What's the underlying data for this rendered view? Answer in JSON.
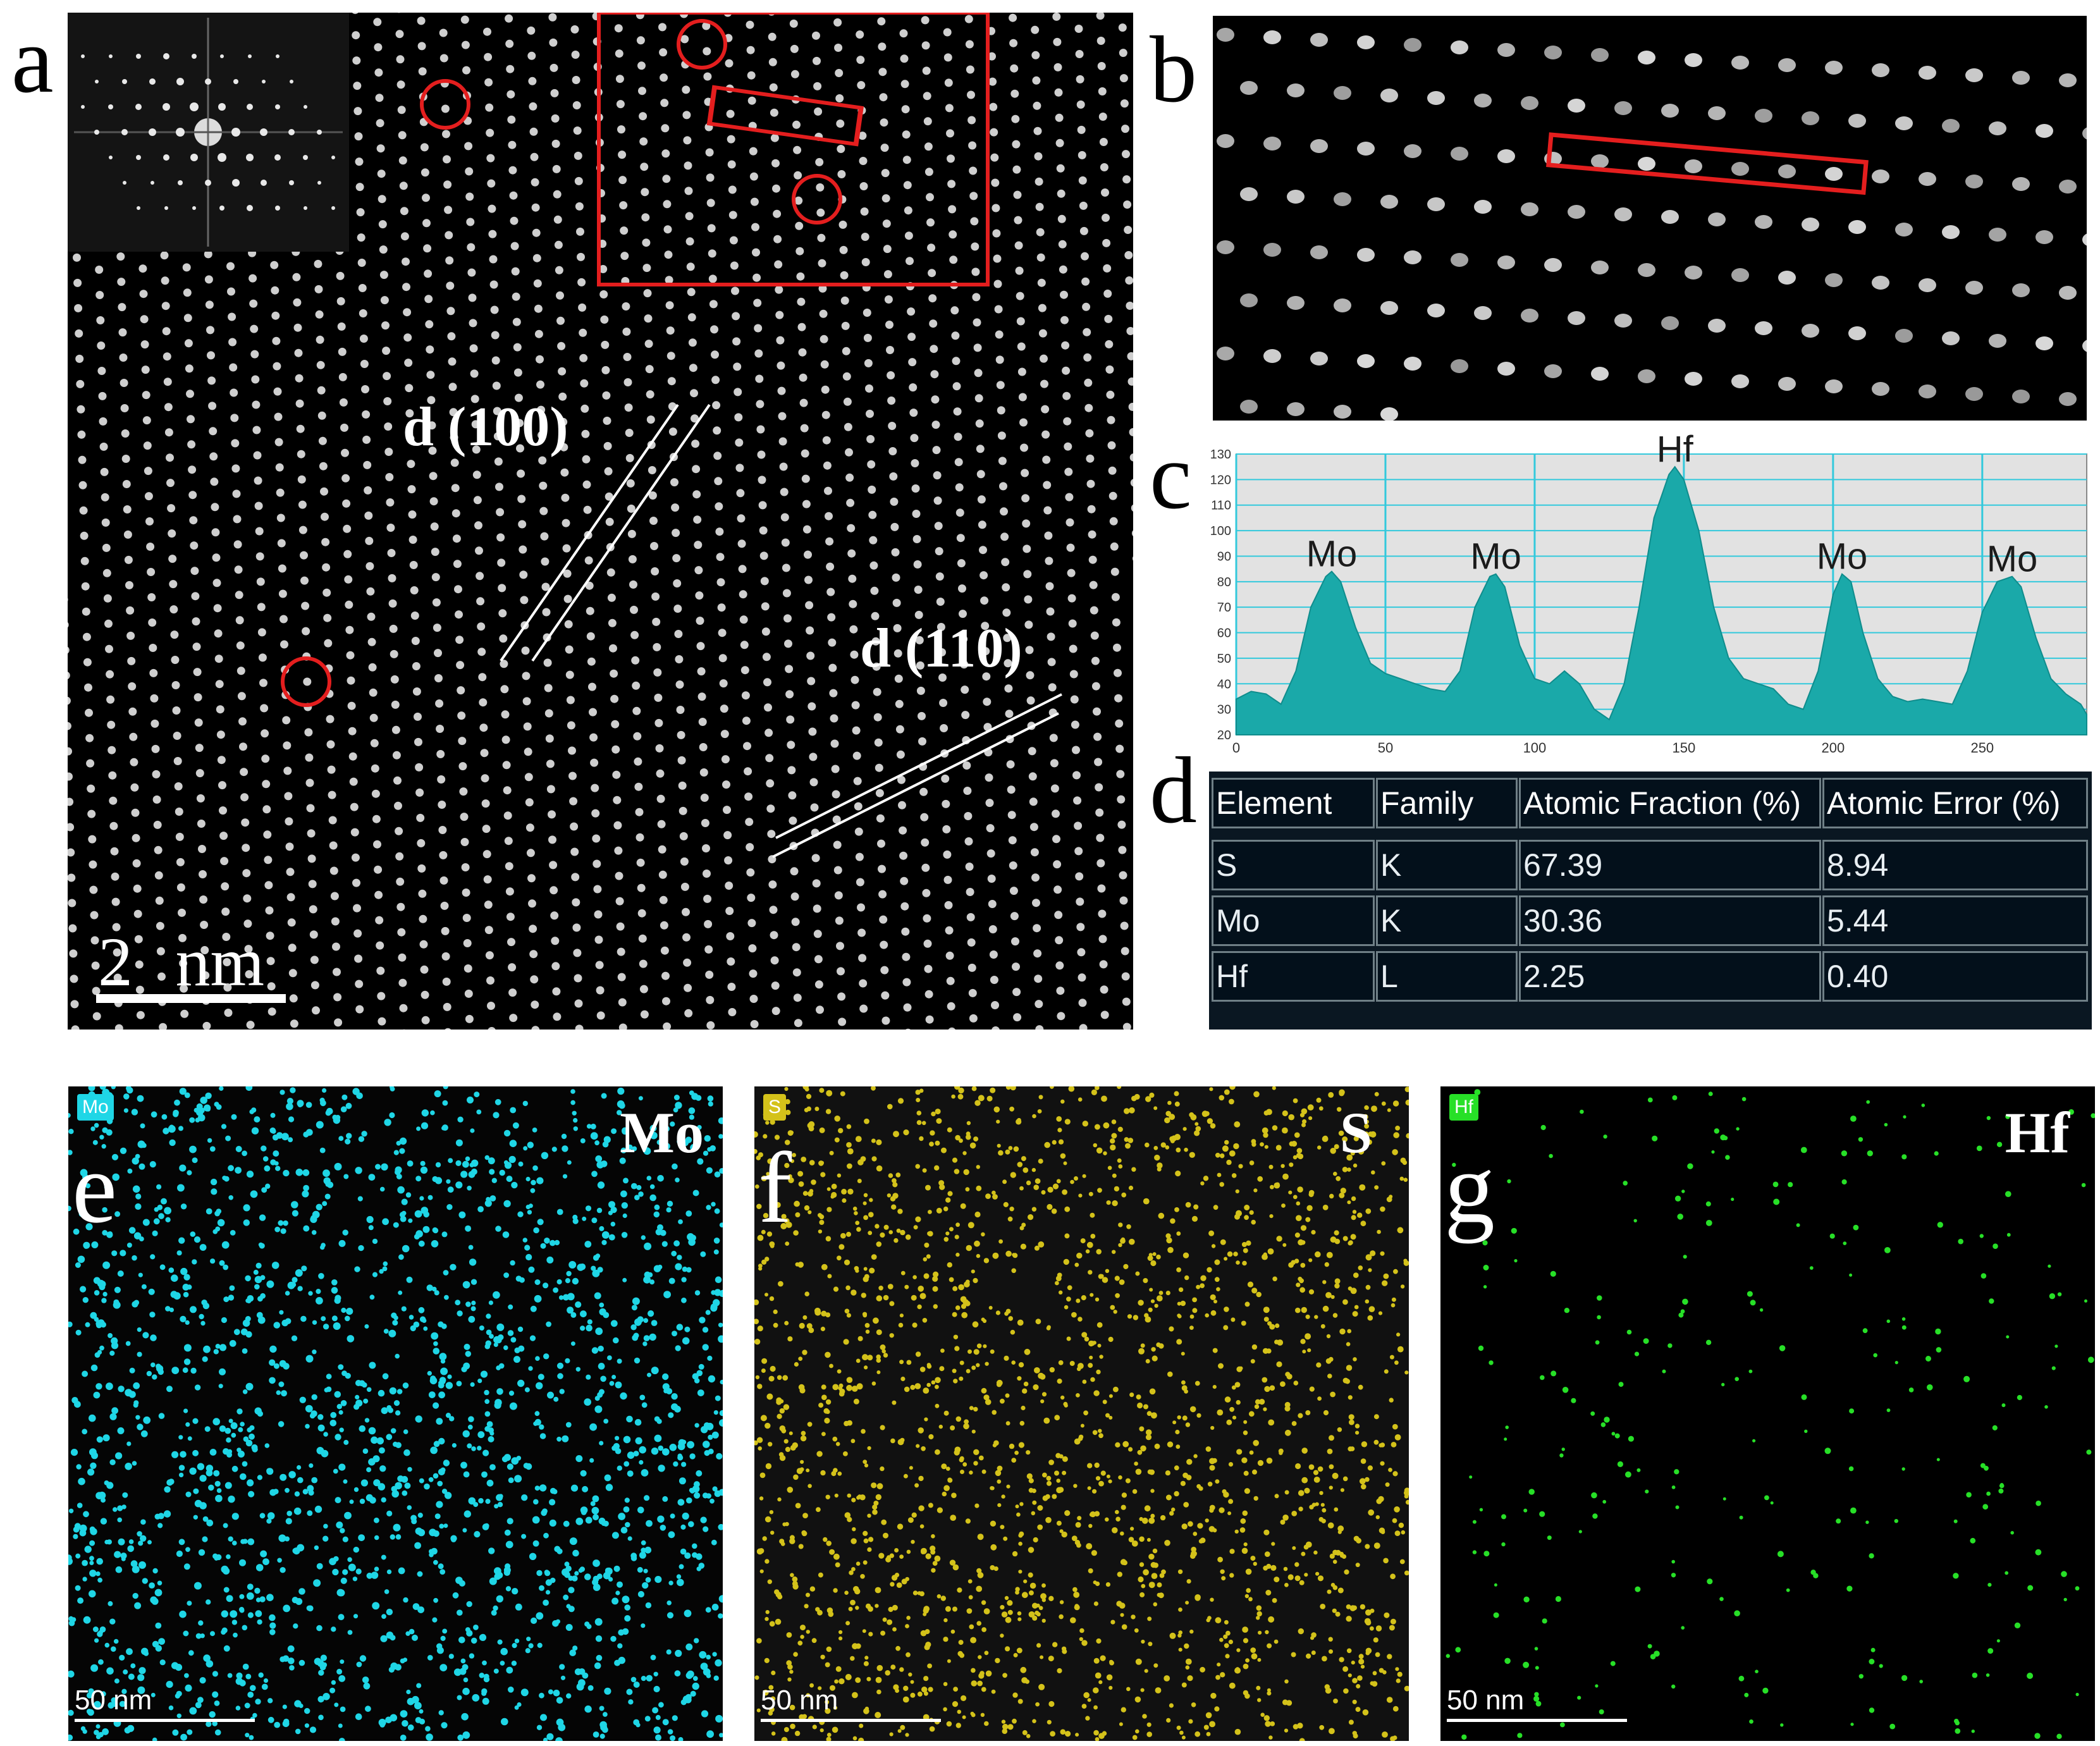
{
  "panels": {
    "a": {
      "letter": "a",
      "label_d100": "d (100)",
      "label_d110": "d (110)",
      "scale_label": "2 nm"
    },
    "b": {
      "letter": "b"
    },
    "c": {
      "letter": "c"
    },
    "d": {
      "letter": "d"
    },
    "e": {
      "letter": "e",
      "element": "Mo",
      "tag": "Mo",
      "scale_label": "50 nm",
      "dot_color": "#1fd6e6"
    },
    "f": {
      "letter": "f",
      "element": "S",
      "tag": "S",
      "scale_label": "50 nm",
      "dot_color": "#d4c21a"
    },
    "g": {
      "letter": "g",
      "element": "Hf",
      "tag": "Hf",
      "scale_label": "50 nm",
      "dot_color": "#27e027"
    }
  },
  "colors": {
    "highlight_red": "#e41e1e",
    "profile_fill": "#1aa9a9",
    "profile_bg": "#e2e2e2",
    "grid_cyan": "#33c9dc"
  },
  "chart_data": {
    "type": "area",
    "xlim": [
      0,
      285
    ],
    "ylim": [
      20,
      130
    ],
    "x_ticks": [
      "0",
      "50",
      "100",
      "150",
      "200",
      "250"
    ],
    "y_ticks": [
      "20",
      "30",
      "40",
      "50",
      "60",
      "70",
      "80",
      "90",
      "100",
      "110",
      "120",
      "130"
    ],
    "peaks": [
      {
        "label": "Mo",
        "x": 32,
        "y": 84
      },
      {
        "label": "Mo",
        "x": 87,
        "y": 83
      },
      {
        "label": "Hf",
        "x": 147,
        "y": 125
      },
      {
        "label": "Mo",
        "x": 203,
        "y": 83
      },
      {
        "label": "Mo",
        "x": 260,
        "y": 82
      }
    ],
    "profile": [
      [
        0,
        34
      ],
      [
        5,
        37
      ],
      [
        10,
        36
      ],
      [
        15,
        32
      ],
      [
        20,
        45
      ],
      [
        25,
        70
      ],
      [
        30,
        82
      ],
      [
        32,
        84
      ],
      [
        35,
        80
      ],
      [
        40,
        62
      ],
      [
        45,
        48
      ],
      [
        50,
        44
      ],
      [
        55,
        42
      ],
      [
        60,
        40
      ],
      [
        65,
        38
      ],
      [
        70,
        37
      ],
      [
        75,
        45
      ],
      [
        80,
        70
      ],
      [
        85,
        82
      ],
      [
        87,
        83
      ],
      [
        90,
        78
      ],
      [
        95,
        55
      ],
      [
        100,
        42
      ],
      [
        105,
        40
      ],
      [
        110,
        45
      ],
      [
        115,
        40
      ],
      [
        120,
        30
      ],
      [
        125,
        26
      ],
      [
        130,
        40
      ],
      [
        135,
        70
      ],
      [
        140,
        105
      ],
      [
        145,
        122
      ],
      [
        147,
        125
      ],
      [
        150,
        120
      ],
      [
        155,
        100
      ],
      [
        160,
        70
      ],
      [
        165,
        50
      ],
      [
        170,
        42
      ],
      [
        175,
        40
      ],
      [
        180,
        38
      ],
      [
        185,
        32
      ],
      [
        190,
        30
      ],
      [
        195,
        45
      ],
      [
        200,
        75
      ],
      [
        203,
        83
      ],
      [
        206,
        80
      ],
      [
        210,
        60
      ],
      [
        215,
        42
      ],
      [
        220,
        35
      ],
      [
        225,
        33
      ],
      [
        230,
        34
      ],
      [
        235,
        33
      ],
      [
        240,
        32
      ],
      [
        245,
        45
      ],
      [
        250,
        68
      ],
      [
        255,
        80
      ],
      [
        260,
        82
      ],
      [
        263,
        78
      ],
      [
        268,
        58
      ],
      [
        273,
        42
      ],
      [
        278,
        36
      ],
      [
        283,
        32
      ],
      [
        285,
        28
      ]
    ]
  },
  "table": {
    "headers": [
      "Element",
      "Family",
      "Atomic Fraction (%)",
      "Atomic Error (%)"
    ],
    "rows": [
      [
        "S",
        "K",
        "67.39",
        "8.94"
      ],
      [
        "Mo",
        "K",
        "30.36",
        "5.44"
      ],
      [
        "Hf",
        "L",
        "2.25",
        "0.40"
      ]
    ]
  }
}
